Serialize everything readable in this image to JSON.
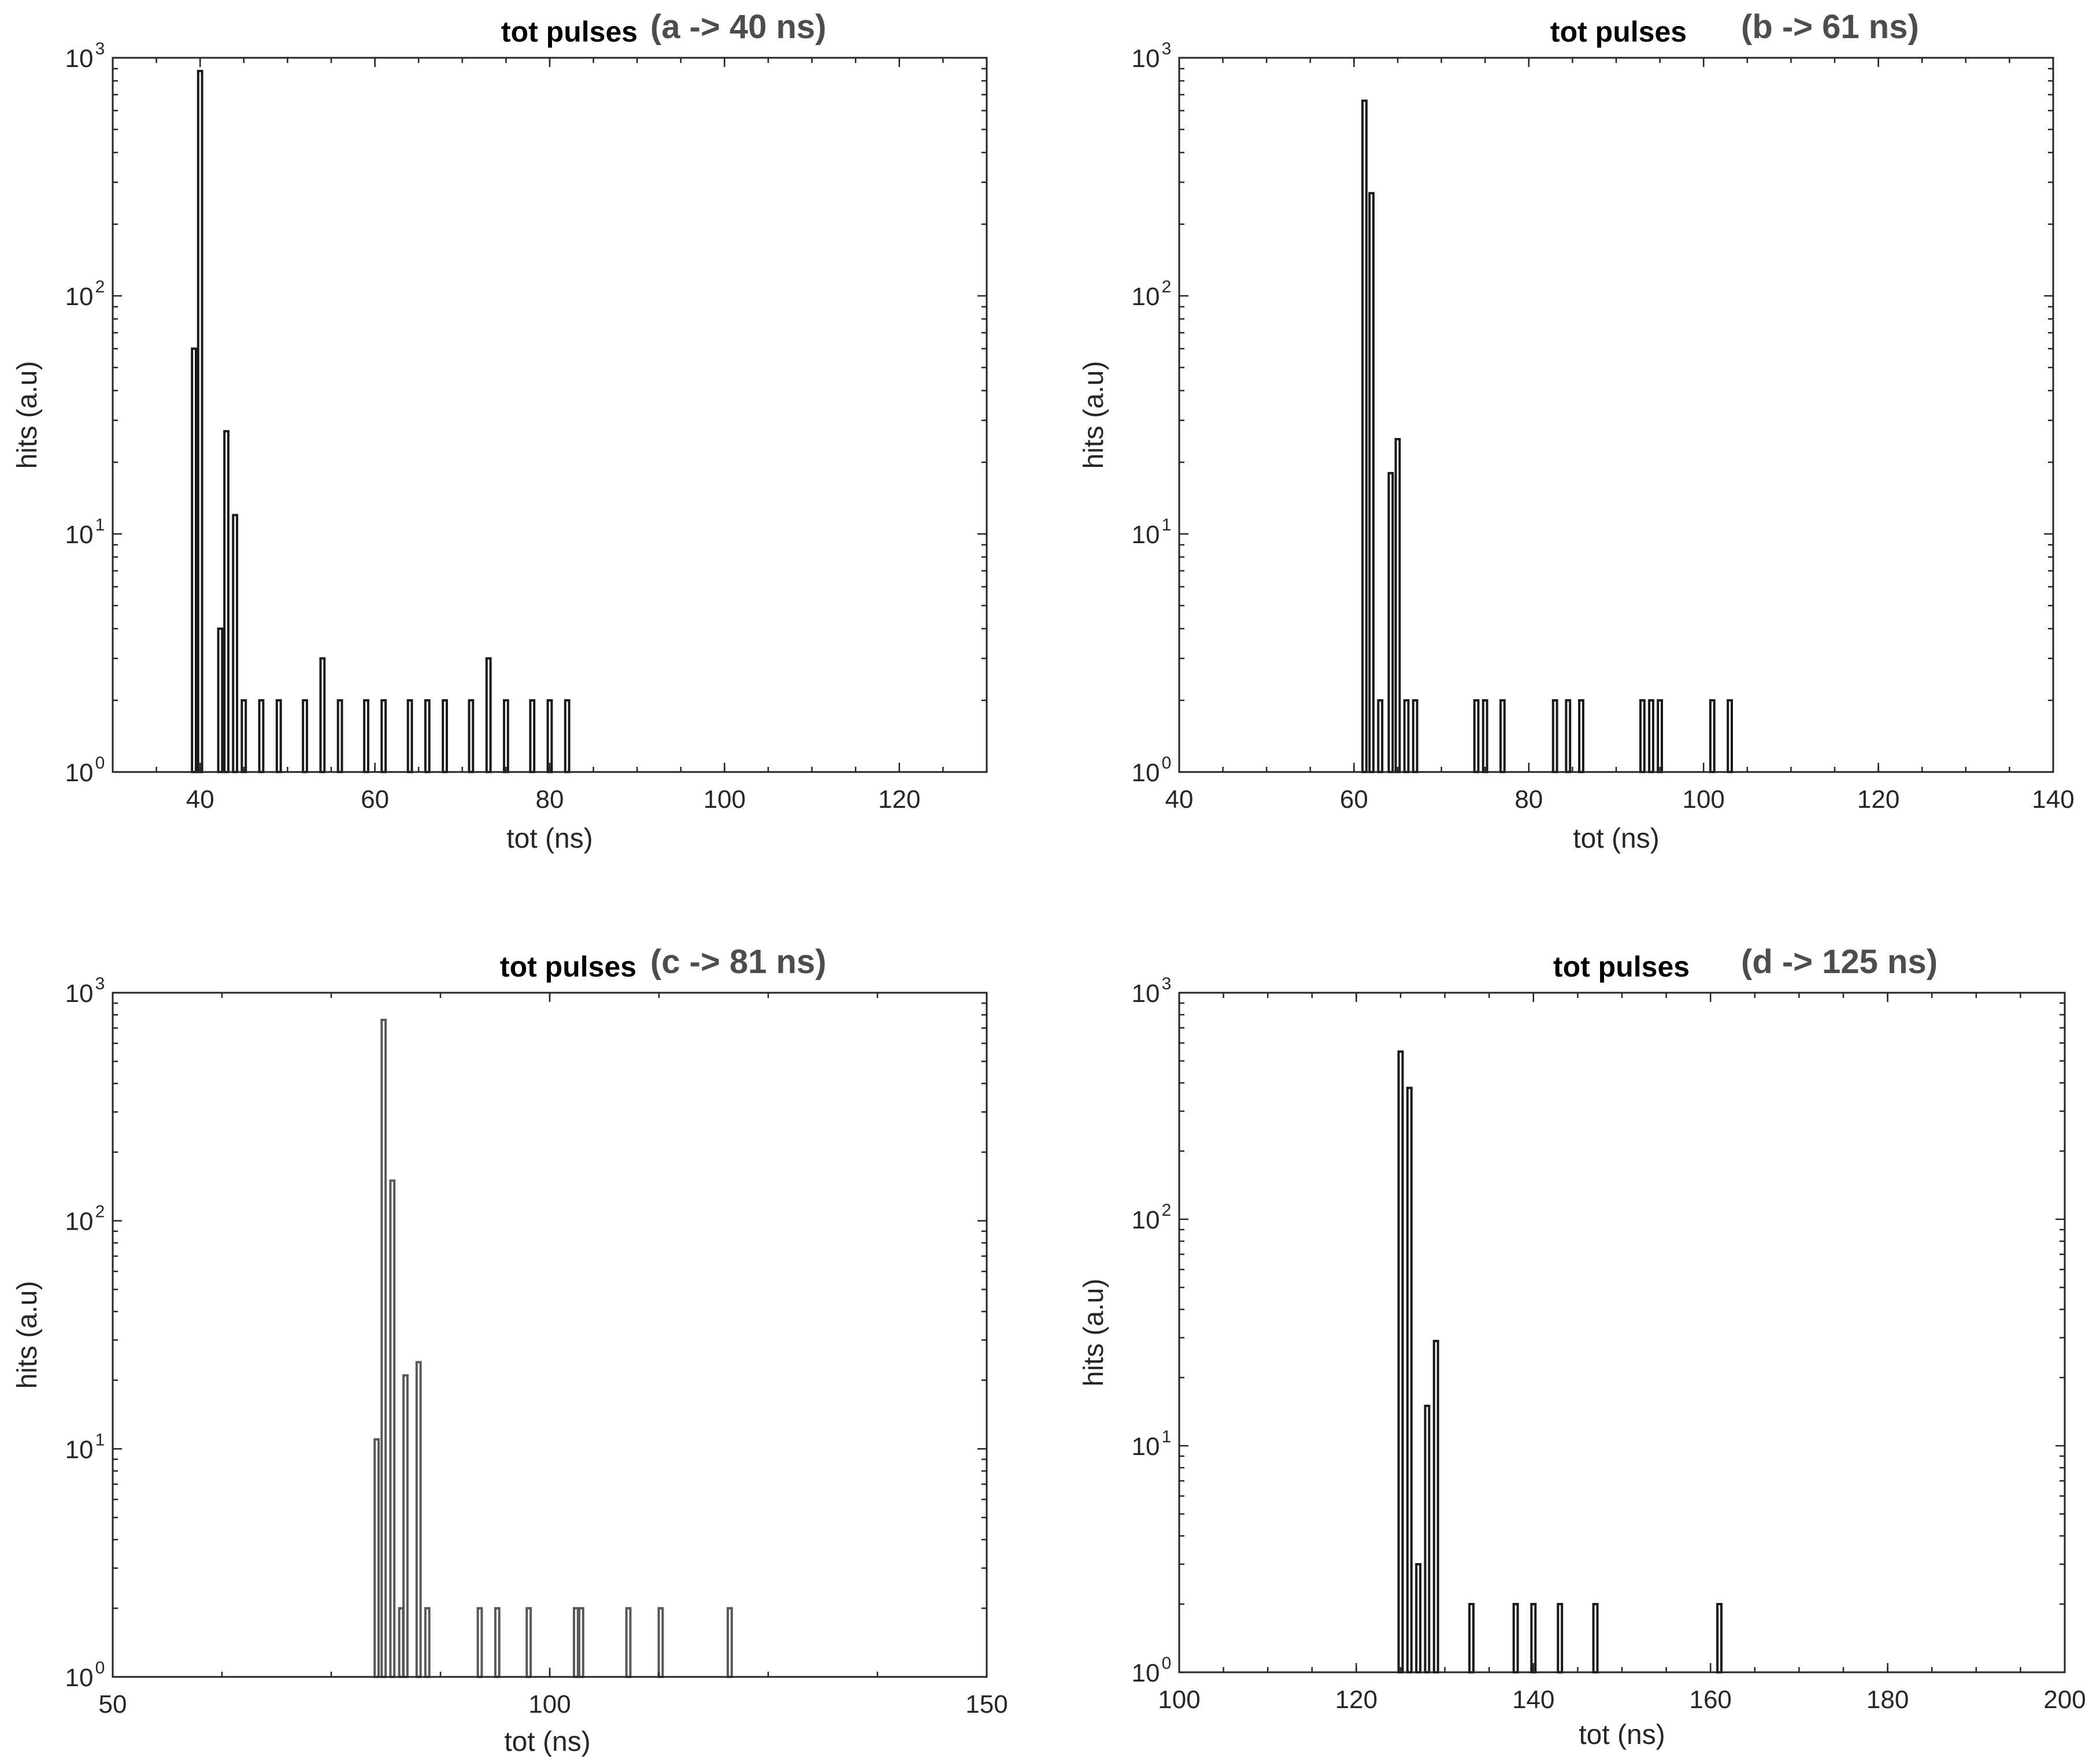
{
  "chart_data": [
    {
      "type": "bar",
      "title": "tot pulses",
      "subtitle": "(a ->  40 ns)",
      "xlabel": "tot (ns)",
      "ylabel": "hits (a.u)",
      "xlim": [
        30,
        130
      ],
      "ylim": [
        1,
        1000
      ],
      "yscale": "log",
      "grid": false,
      "bar_color": "#1a1a1a",
      "x_ticks": [
        "40",
        "60",
        "80",
        "100",
        "120"
      ],
      "y_ticks": [
        {
          "base": "10",
          "exp": "0"
        },
        {
          "base": "10",
          "exp": "1"
        },
        {
          "base": "10",
          "exp": "2"
        },
        {
          "base": "10",
          "exp": "3"
        }
      ],
      "x": [
        39.3,
        40,
        42.3,
        43,
        44,
        45,
        47,
        49,
        52,
        54,
        56,
        59,
        61,
        64,
        66,
        68,
        71,
        73,
        75,
        78,
        80,
        82
      ],
      "values": [
        60,
        880,
        4,
        27,
        12,
        2,
        2,
        2,
        2,
        3,
        2,
        2,
        2,
        2,
        2,
        2,
        2,
        3,
        2,
        2,
        2,
        2
      ]
    },
    {
      "type": "bar",
      "title": "tot pulses",
      "subtitle": "(b -> 61 ns)",
      "xlabel": "tot (ns)",
      "ylabel": "hits (a.u)",
      "xlim": [
        40,
        140
      ],
      "ylim": [
        1,
        1000
      ],
      "yscale": "log",
      "grid": false,
      "bar_color": "#1a1a1a",
      "x_ticks": [
        "40",
        "60",
        "80",
        "100",
        "120",
        "140"
      ],
      "y_ticks": [
        {
          "base": "10",
          "exp": "0"
        },
        {
          "base": "10",
          "exp": "1"
        },
        {
          "base": "10",
          "exp": "2"
        },
        {
          "base": "10",
          "exp": "3"
        }
      ],
      "x": [
        61.2,
        62,
        63,
        64.2,
        65,
        66,
        67,
        74,
        75,
        77,
        83,
        84.5,
        86,
        93,
        94,
        95,
        101,
        103
      ],
      "values": [
        660,
        270,
        2,
        18,
        25,
        2,
        2,
        2,
        2,
        2,
        2,
        2,
        2,
        2,
        2,
        2,
        2,
        2
      ]
    },
    {
      "type": "bar",
      "title": "tot pulses",
      "subtitle": "(c -> 81 ns)",
      "xlabel": "tot (ns)",
      "ylabel": "hits (a.u)",
      "xlim": [
        50,
        150
      ],
      "ylim": [
        1,
        1000
      ],
      "yscale": "log",
      "grid": false,
      "bar_color": "#595959",
      "x_ticks": [
        "50",
        "100",
        "150"
      ],
      "y_ticks": [
        {
          "base": "10",
          "exp": "0"
        },
        {
          "base": "10",
          "exp": "1"
        },
        {
          "base": "10",
          "exp": "2"
        },
        {
          "base": "10",
          "exp": "3"
        }
      ],
      "x": [
        80.2,
        81,
        82,
        83,
        83.5,
        85,
        86,
        92,
        94,
        97.6,
        103,
        103.6,
        109,
        112.7,
        120.6
      ],
      "values": [
        11,
        760,
        150,
        2,
        21,
        24,
        2,
        2,
        2,
        2,
        2,
        2,
        2,
        2,
        2
      ]
    },
    {
      "type": "bar",
      "title": "tot pulses",
      "subtitle": "(d -> 125 ns)",
      "xlabel": "tot (ns)",
      "ylabel": "hits (a.u)",
      "xlim": [
        100,
        200
      ],
      "ylim": [
        1,
        1000
      ],
      "yscale": "log",
      "grid": false,
      "bar_color": "#1a1a1a",
      "x_ticks": [
        "100",
        "120",
        "140",
        "160",
        "180",
        "200"
      ],
      "y_ticks": [
        {
          "base": "10",
          "exp": "0"
        },
        {
          "base": "10",
          "exp": "1"
        },
        {
          "base": "10",
          "exp": "2"
        },
        {
          "base": "10",
          "exp": "3"
        }
      ],
      "x": [
        125,
        126,
        127,
        128,
        129,
        133,
        138,
        140,
        143,
        147,
        161
      ],
      "values": [
        550,
        380,
        3,
        15,
        29,
        2,
        2,
        2,
        2,
        2,
        2
      ]
    }
  ]
}
